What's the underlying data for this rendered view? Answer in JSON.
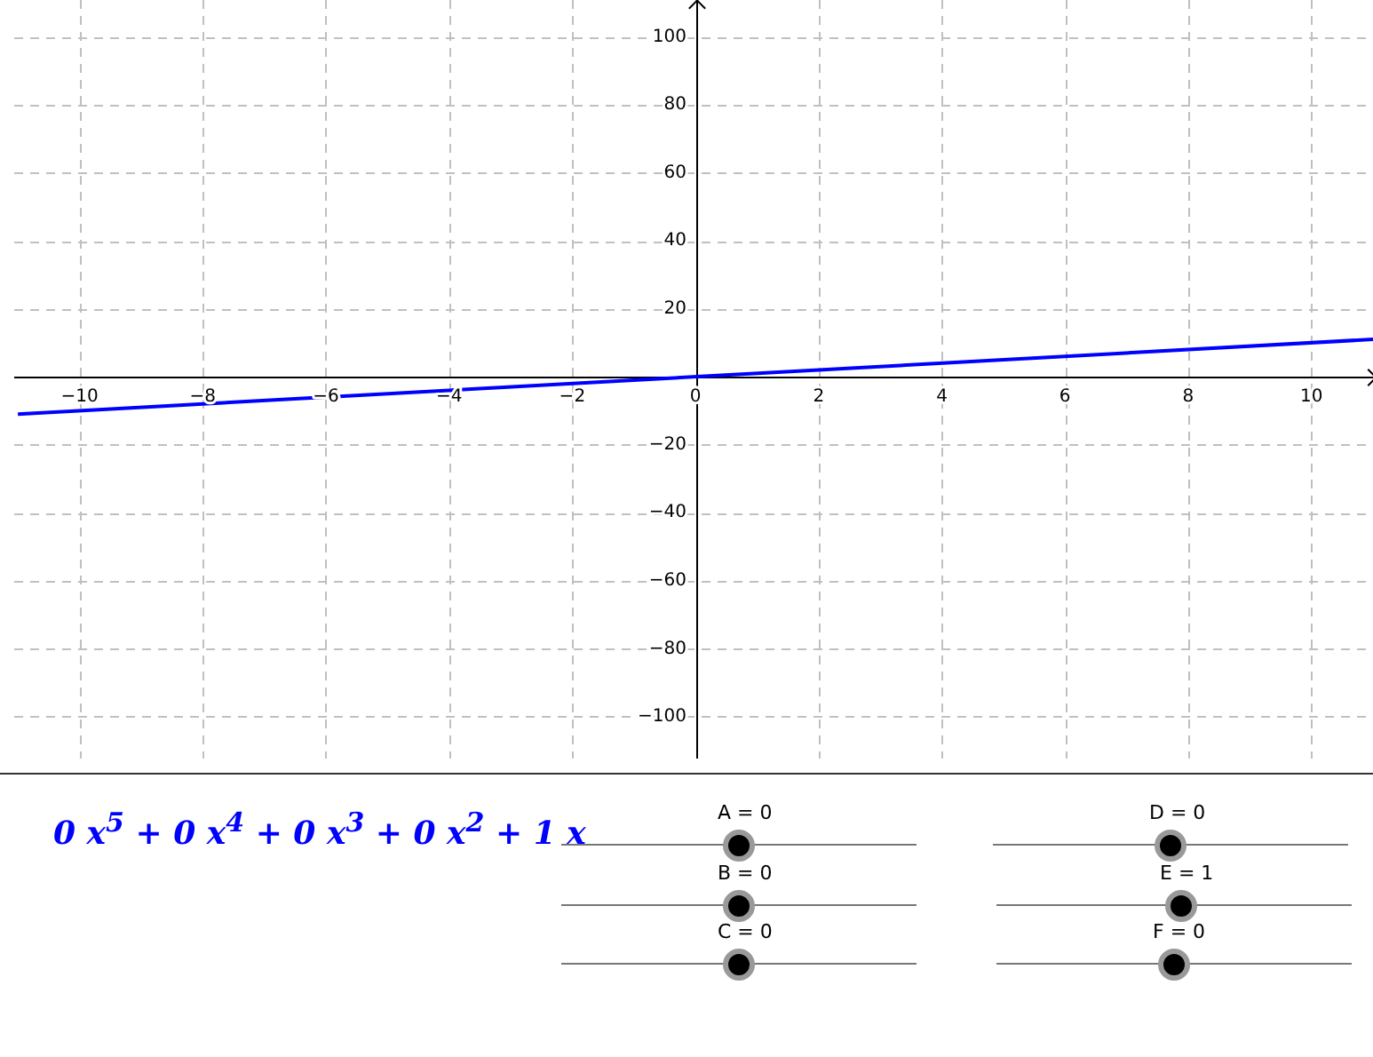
{
  "chart_data": {
    "type": "line",
    "x": [
      -11,
      11
    ],
    "series": [
      {
        "color": "#0000ff",
        "values": [
          -11,
          11
        ]
      }
    ],
    "xlim": [
      -11.06,
      11
    ],
    "ylim": [
      -112.3,
      110.8
    ],
    "xticks": [
      -10,
      -8,
      -6,
      -4,
      -2,
      0,
      2,
      4,
      6,
      8,
      10
    ],
    "yticks": [
      -100,
      -80,
      -60,
      -40,
      -20,
      20,
      40,
      60,
      80,
      100
    ],
    "grid": true,
    "legend": false,
    "marker": "none",
    "line_style": "solid",
    "annotations": [
      "0 x$^{5}$ + 0 x$^{4}$ + 0 x$^{3}$ + 0 x$^{2}$ + 1 x",
      "A = 0",
      "B = 0",
      "C = 0",
      "D = 0",
      "E = 1",
      "F = 0"
    ]
  }
}
